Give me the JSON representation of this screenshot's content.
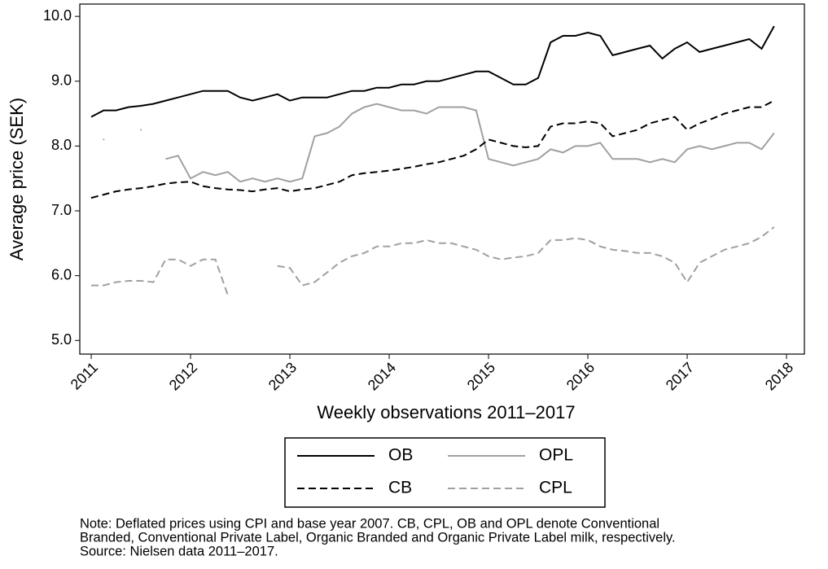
{
  "chart_data": {
    "type": "line",
    "xlabel": "Weekly observations 2011–2017",
    "ylabel": "Average price (SEK)",
    "x": [
      2011,
      2011.125,
      2011.25,
      2011.375,
      2011.5,
      2011.625,
      2011.75,
      2011.875,
      2012,
      2012.125,
      2012.25,
      2012.375,
      2012.5,
      2012.625,
      2012.75,
      2012.875,
      2013,
      2013.125,
      2013.25,
      2013.375,
      2013.5,
      2013.625,
      2013.75,
      2013.875,
      2014,
      2014.125,
      2014.25,
      2014.375,
      2014.5,
      2014.625,
      2014.75,
      2014.875,
      2015,
      2015.125,
      2015.25,
      2015.375,
      2015.5,
      2015.625,
      2015.75,
      2015.875,
      2016,
      2016.125,
      2016.25,
      2016.375,
      2016.5,
      2016.625,
      2016.75,
      2016.875,
      2017,
      2017.125,
      2017.25,
      2017.375,
      2017.5,
      2017.625,
      2017.75,
      2017.875
    ],
    "series": [
      {
        "name": "OB",
        "color": "#000000",
        "style": "solid",
        "values": [
          8.45,
          8.55,
          8.55,
          8.6,
          8.62,
          8.65,
          8.7,
          8.75,
          8.8,
          8.85,
          8.85,
          8.85,
          8.75,
          8.7,
          8.75,
          8.8,
          8.7,
          8.75,
          8.75,
          8.75,
          8.8,
          8.85,
          8.85,
          8.9,
          8.9,
          8.95,
          8.95,
          9.0,
          9.0,
          9.05,
          9.1,
          9.15,
          9.15,
          9.05,
          8.95,
          8.95,
          9.05,
          9.6,
          9.7,
          9.7,
          9.75,
          9.7,
          9.4,
          9.45,
          9.5,
          9.55,
          9.35,
          9.5,
          9.6,
          9.45,
          9.5,
          9.55,
          9.6,
          9.65,
          9.5,
          9.85
        ]
      },
      {
        "name": "OPL",
        "color": "#a0a0a0",
        "style": "solid",
        "values": [
          null,
          8.1,
          null,
          null,
          8.25,
          null,
          7.8,
          7.85,
          7.5,
          7.6,
          7.55,
          7.6,
          7.45,
          7.5,
          7.45,
          7.5,
          7.45,
          7.5,
          8.15,
          8.2,
          8.3,
          8.5,
          8.6,
          8.65,
          8.6,
          8.55,
          8.55,
          8.5,
          8.6,
          8.6,
          8.6,
          8.55,
          7.8,
          7.75,
          7.7,
          7.75,
          7.8,
          7.95,
          7.9,
          8.0,
          8.0,
          8.05,
          7.8,
          7.8,
          7.8,
          7.75,
          7.8,
          7.75,
          7.95,
          8.0,
          7.95,
          8.0,
          8.05,
          8.05,
          7.95,
          8.2
        ]
      },
      {
        "name": "CB",
        "color": "#000000",
        "style": "dashed",
        "values": [
          7.2,
          7.25,
          7.3,
          7.33,
          7.35,
          7.38,
          7.42,
          7.44,
          7.45,
          7.38,
          7.35,
          7.33,
          7.32,
          7.3,
          7.33,
          7.35,
          7.3,
          7.33,
          7.35,
          7.4,
          7.45,
          7.55,
          7.58,
          7.6,
          7.62,
          7.65,
          7.68,
          7.72,
          7.75,
          7.8,
          7.85,
          7.95,
          8.1,
          8.05,
          8.0,
          7.98,
          8.0,
          8.3,
          8.35,
          8.35,
          8.38,
          8.35,
          8.15,
          8.2,
          8.25,
          8.35,
          8.4,
          8.45,
          8.25,
          8.35,
          8.42,
          8.5,
          8.55,
          8.6,
          8.6,
          8.7
        ]
      },
      {
        "name": "CPL",
        "color": "#a0a0a0",
        "style": "dashed",
        "values": [
          5.85,
          5.85,
          5.9,
          5.92,
          5.92,
          5.9,
          6.25,
          6.25,
          6.15,
          6.25,
          6.25,
          5.7,
          null,
          null,
          null,
          6.15,
          6.12,
          5.85,
          5.9,
          6.05,
          6.2,
          6.3,
          6.35,
          6.45,
          6.45,
          6.5,
          6.5,
          6.55,
          6.5,
          6.5,
          6.45,
          6.4,
          6.3,
          6.25,
          6.28,
          6.3,
          6.35,
          6.55,
          6.55,
          6.58,
          6.55,
          6.45,
          6.4,
          6.38,
          6.35,
          6.35,
          6.3,
          6.2,
          5.9,
          6.2,
          6.3,
          6.4,
          6.45,
          6.5,
          6.6,
          6.75
        ]
      }
    ],
    "xlim": [
      2010.885,
      2018.18
    ],
    "xticks": [
      2011,
      2012,
      2013,
      2014,
      2015,
      2016,
      2017,
      2018
    ],
    "ylim": [
      4.79,
      10.19
    ],
    "yticks": [
      {
        "value": 5,
        "label": "5.0"
      },
      {
        "value": 6,
        "label": "6.0"
      },
      {
        "value": 7,
        "label": "7.0"
      },
      {
        "value": 8,
        "label": "8.0"
      },
      {
        "value": 9,
        "label": "9.0"
      },
      {
        "value": 10,
        "label": "10.0"
      }
    ],
    "grid": false,
    "legend": "bottom",
    "notes": [
      "Note: Deflated prices using CPI and base year 2007. CB, CPL, OB and OPL denote Conventional",
      "Branded, Conventional Private Label, Organic Branded and Organic Private Label milk, respectively.",
      "Source: Nielsen data 2011–2017."
    ]
  }
}
